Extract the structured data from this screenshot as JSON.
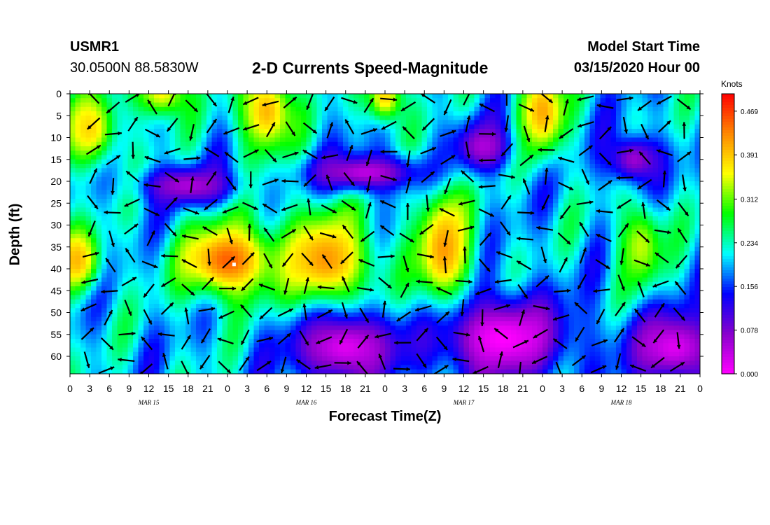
{
  "header": {
    "station_id": "USMR1",
    "coordinates": "30.0500N 88.5830W",
    "title": "2-D Currents Speed-Magnitude",
    "model_start_label": "Model Start Time",
    "model_start_value": "03/15/2020 Hour 00"
  },
  "chart_data": {
    "type": "heatmap",
    "title": "2-D Currents Speed-Magnitude",
    "xlabel": "Forecast Time(Z)",
    "ylabel": "Depth (ft)",
    "x_ticks": [
      "0",
      "3",
      "6",
      "9",
      "12",
      "15",
      "18",
      "21",
      "0",
      "3",
      "6",
      "9",
      "12",
      "15",
      "18",
      "21",
      "0",
      "3",
      "6",
      "9",
      "12",
      "15",
      "18",
      "21",
      "0",
      "3",
      "6",
      "9",
      "12",
      "15",
      "18",
      "21",
      "0"
    ],
    "x_range_hours": [
      0,
      96
    ],
    "date_labels": [
      {
        "text": "MAR 15",
        "hour": 12
      },
      {
        "text": "MAR 16",
        "hour": 36
      },
      {
        "text": "MAR 17",
        "hour": 60
      },
      {
        "text": "MAR 18",
        "hour": 84
      }
    ],
    "y_ticks": [
      "0",
      "5",
      "10",
      "15",
      "20",
      "25",
      "30",
      "35",
      "40",
      "45",
      "50",
      "55",
      "60"
    ],
    "y_range_ft": [
      0,
      64
    ],
    "y_inverted": true,
    "colorbar": {
      "unit": "Knots",
      "range": [
        0.0,
        0.5
      ],
      "ticks": [
        "0.469",
        "0.391",
        "0.312",
        "0.234",
        "0.156",
        "0.078",
        "0.000"
      ],
      "colors": [
        "#ff00ff",
        "#8800cc",
        "#0000ff",
        "#00ffff",
        "#00ff00",
        "#ffff00",
        "#ff8800",
        "#ff0000"
      ]
    },
    "hot_spots": [
      {
        "t": 3,
        "d": 8,
        "v": 0.38,
        "sx": 3,
        "sy": 6
      },
      {
        "t": 14,
        "d": 0,
        "v": 0.36,
        "sx": 3,
        "sy": 4
      },
      {
        "t": 30,
        "d": 4,
        "v": 0.4,
        "sx": 3,
        "sy": 7
      },
      {
        "t": 48,
        "d": 1,
        "v": 0.38,
        "sx": 2,
        "sy": 4
      },
      {
        "t": 72,
        "d": 4,
        "v": 0.41,
        "sx": 2.5,
        "sy": 7
      },
      {
        "t": 1,
        "d": 38,
        "v": 0.4,
        "sx": 2.5,
        "sy": 5
      },
      {
        "t": 24,
        "d": 38,
        "v": 0.45,
        "sx": 5,
        "sy": 6
      },
      {
        "t": 39,
        "d": 38,
        "v": 0.42,
        "sx": 5,
        "sy": 8
      },
      {
        "t": 57,
        "d": 36,
        "v": 0.42,
        "sx": 3,
        "sy": 10
      },
      {
        "t": 87,
        "d": 35,
        "v": 0.34,
        "sx": 2.5,
        "sy": 7
      }
    ],
    "cold_spots": [
      {
        "t": 18,
        "d": 21,
        "v": 0.05,
        "sx": 5,
        "sy": 3
      },
      {
        "t": 45,
        "d": 18,
        "v": 0.04,
        "sx": 6,
        "sy": 3
      },
      {
        "t": 42,
        "d": 58,
        "v": 0.02,
        "sx": 6,
        "sy": 6
      },
      {
        "t": 66,
        "d": 56,
        "v": 0.0,
        "sx": 7,
        "sy": 7
      },
      {
        "t": 92,
        "d": 58,
        "v": 0.02,
        "sx": 5,
        "sy": 6
      },
      {
        "t": 63,
        "d": 12,
        "v": 0.05,
        "sx": 3,
        "sy": 4
      },
      {
        "t": 86,
        "d": 15,
        "v": 0.06,
        "sx": 3,
        "sy": 4
      }
    ],
    "marker": {
      "t": 25,
      "d": 39
    }
  }
}
